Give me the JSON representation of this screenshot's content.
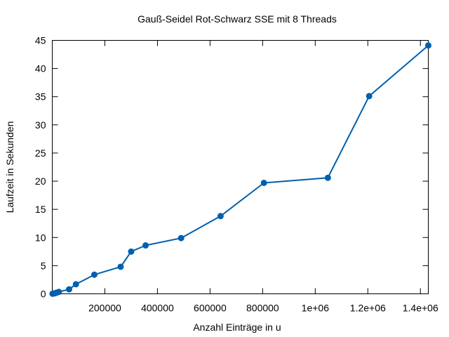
{
  "chart_data": {
    "type": "line",
    "title": "Gauß-Seidel Rot-Schwarz SSE mit 8 Threads",
    "xlabel": "Anzahl Einträge in u",
    "ylabel": "Laufzeit in Sekunden",
    "xlim": [
      0,
      1430000
    ],
    "ylim": [
      0,
      45
    ],
    "x_ticks": [
      200000,
      400000,
      600000,
      800000,
      1000000,
      1200000,
      1400000
    ],
    "x_tick_labels": [
      "200000",
      "400000",
      "600000",
      "800000",
      "1e+06",
      "1.2e+06",
      "1.4e+06"
    ],
    "y_ticks": [
      0,
      5,
      10,
      15,
      20,
      25,
      30,
      35,
      40,
      45
    ],
    "y_tick_labels": [
      "0",
      "5",
      "10",
      "15",
      "20",
      "25",
      "30",
      "35",
      "40",
      "45"
    ],
    "grid": false,
    "legend": "none",
    "series": [
      {
        "color": "#0060ad",
        "marker": "circle",
        "x": [
          1000,
          4000,
          10000,
          16000,
          25000,
          64000,
          90000,
          160000,
          260000,
          300000,
          355000,
          490000,
          640000,
          805000,
          1048000,
          1205000,
          1430000
        ],
        "y": [
          0.02,
          0.05,
          0.1,
          0.2,
          0.35,
          0.8,
          1.7,
          3.4,
          4.8,
          7.5,
          8.6,
          9.9,
          13.8,
          19.7,
          20.6,
          35.1,
          44.1
        ]
      }
    ]
  }
}
